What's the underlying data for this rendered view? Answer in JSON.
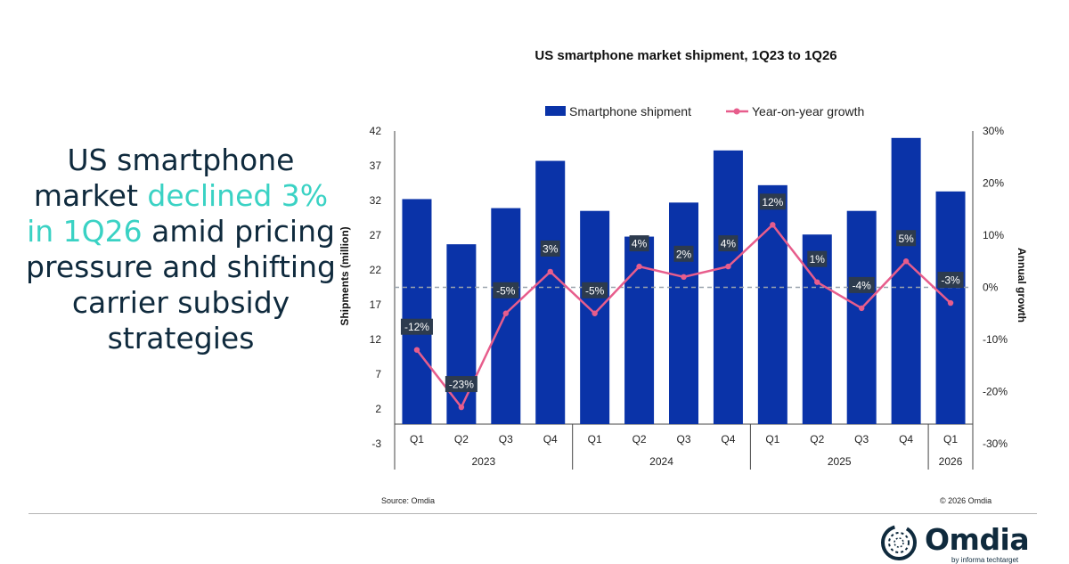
{
  "headline": {
    "part1": "US smartphone market ",
    "highlight": "declined 3% in 1Q26",
    "part2": " amid pricing pressure and shifting carrier subsidy strategies"
  },
  "chart_data": {
    "type": "bar",
    "title": "US smartphone market shipment, 1Q23 to 1Q26",
    "ylabel": "Shipments (million)",
    "y2label": "Annual growth",
    "ylim": [
      -3,
      42
    ],
    "yticks": [
      -3,
      2,
      7,
      12,
      17,
      22,
      27,
      32,
      37,
      42
    ],
    "y2lim": [
      -30,
      30
    ],
    "y2ticks": [
      "-30%",
      "-20%",
      "-10%",
      "0%",
      "10%",
      "20%",
      "30%"
    ],
    "y2tick_values": [
      -30,
      -20,
      -10,
      0,
      10,
      20,
      30
    ],
    "legend": [
      "Smartphone shipment",
      "Year-on-year growth"
    ],
    "legend_position": "top",
    "categories": [
      "Q1",
      "Q2",
      "Q3",
      "Q4",
      "Q1",
      "Q2",
      "Q3",
      "Q4",
      "Q1",
      "Q2",
      "Q3",
      "Q4",
      "Q1"
    ],
    "years": [
      {
        "label": "2023",
        "count": 4
      },
      {
        "label": "2024",
        "count": 4
      },
      {
        "label": "2025",
        "count": 4
      },
      {
        "label": "2026",
        "count": 1
      }
    ],
    "series": [
      {
        "name": "Smartphone shipment",
        "type": "bar",
        "color": "#0a33a8",
        "values": [
          32.2,
          25.7,
          30.9,
          37.7,
          30.5,
          26.8,
          31.7,
          39.2,
          34.2,
          27.1,
          30.5,
          41.0,
          33.3
        ]
      },
      {
        "name": "Year-on-year growth",
        "type": "line",
        "color": "#e75d8c",
        "values": [
          -12,
          -23,
          -5,
          3,
          -5,
          4,
          2,
          4,
          12,
          1,
          -4,
          5,
          -3
        ],
        "labels": [
          "-12%",
          "-23%",
          "-5%",
          "3%",
          "-5%",
          "4%",
          "2%",
          "4%",
          "12%",
          "1%",
          "-4%",
          "5%",
          "-3%"
        ]
      }
    ],
    "reference_line": 0
  },
  "footer": {
    "source": "Source: Omdia",
    "copyright": "© 2026 Omdia"
  },
  "logo": {
    "word": "Omdia",
    "tagline": "by informa techtarget"
  },
  "colors": {
    "bar": "#0a33a8",
    "line": "#e75d8c",
    "label_bg": "#2d3b4e",
    "headline_dark": "#0f2a3d",
    "headline_accent": "#3ad2c4"
  }
}
